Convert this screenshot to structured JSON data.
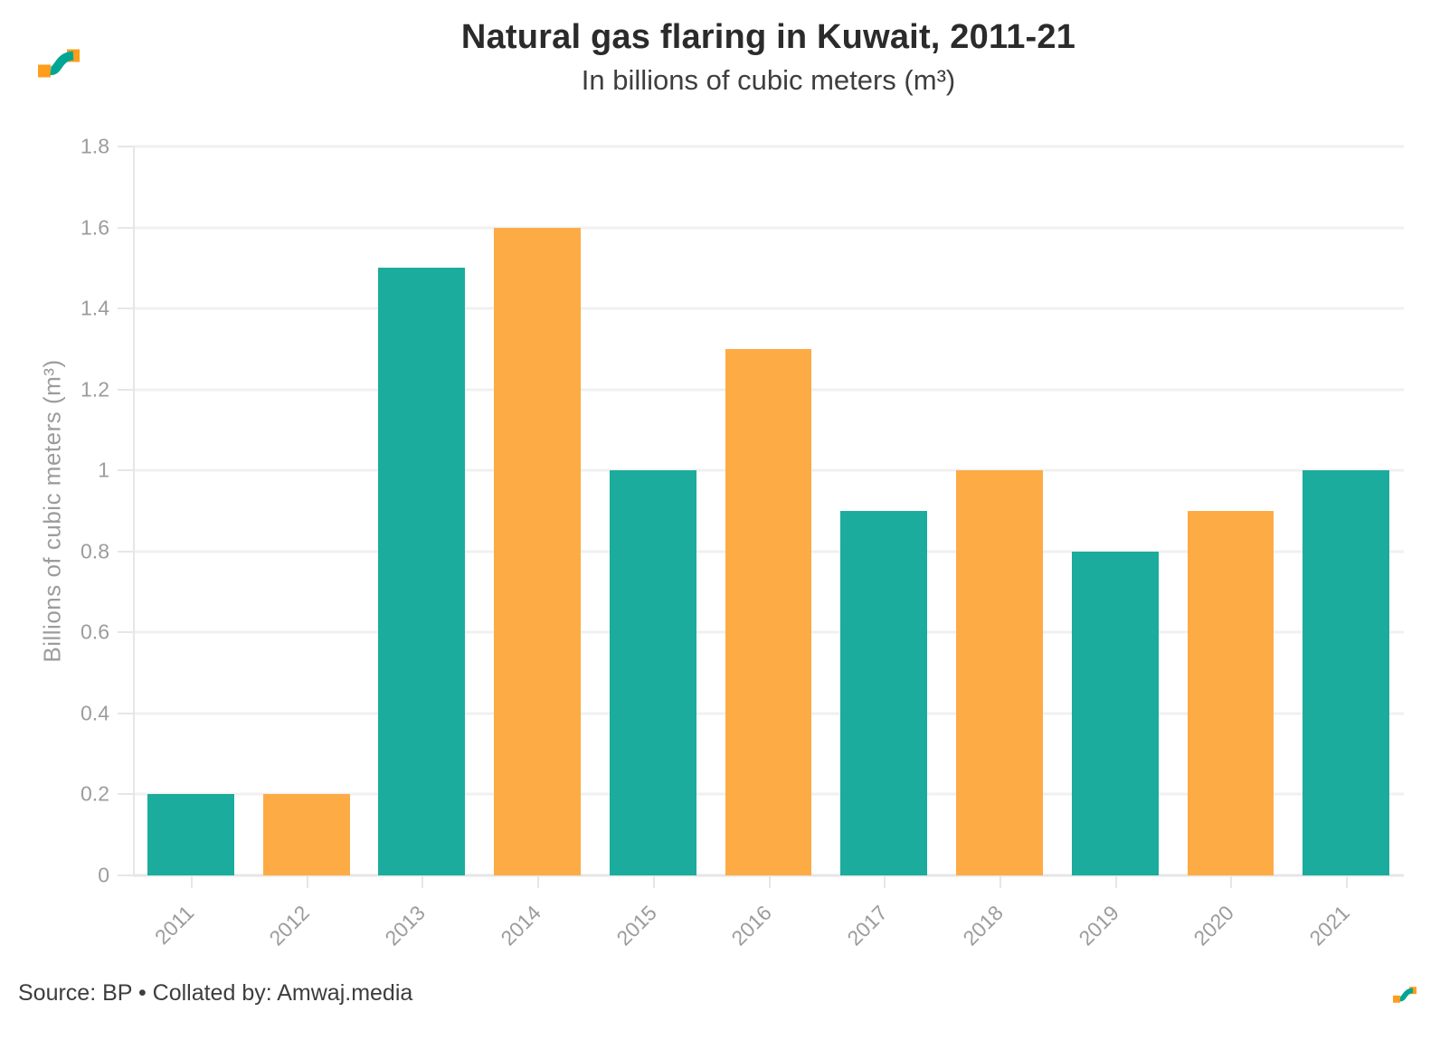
{
  "header": {
    "title": "Natural gas flaring in Kuwait, 2011-21",
    "subtitle": "In billions of cubic meters (m³)"
  },
  "chart_data": {
    "type": "bar",
    "title": "Natural gas flaring in Kuwait, 2011-21",
    "subtitle": "In billions of cubic meters (m³)",
    "categories": [
      "2011",
      "2012",
      "2013",
      "2014",
      "2015",
      "2016",
      "2017",
      "2018",
      "2019",
      "2020",
      "2021"
    ],
    "values": [
      0.2,
      0.2,
      1.5,
      1.6,
      1.0,
      1.3,
      0.9,
      1.0,
      0.8,
      0.9,
      1.0
    ],
    "bar_colors_alternating": [
      "#1BAC9D",
      "#FDAB45"
    ],
    "xlabel": "",
    "ylabel": "Billions of cubic meters (m³)",
    "ylim": [
      0,
      1.8
    ],
    "ytick_labels": [
      "0",
      "0.2",
      "0.4",
      "0.6",
      "0.8",
      "1",
      "1.2",
      "1.4",
      "1.6",
      "1.8"
    ],
    "grid": "horizontal",
    "legend_position": "none"
  },
  "footer": {
    "source": "Source: BP • Collated by: Amwaj.media"
  },
  "colors": {
    "teal": "#1BAC9D",
    "orange": "#FDAB45",
    "grid": "#f0f0f0",
    "axis": "#e6e6e6",
    "tick_label": "#9c9c9c",
    "title": "#2b2b2b",
    "subtitle": "#3e3e3e",
    "source_text": "#3d3d3d",
    "logo_teal": "#00A693",
    "logo_orange": "#FF9D1C"
  }
}
